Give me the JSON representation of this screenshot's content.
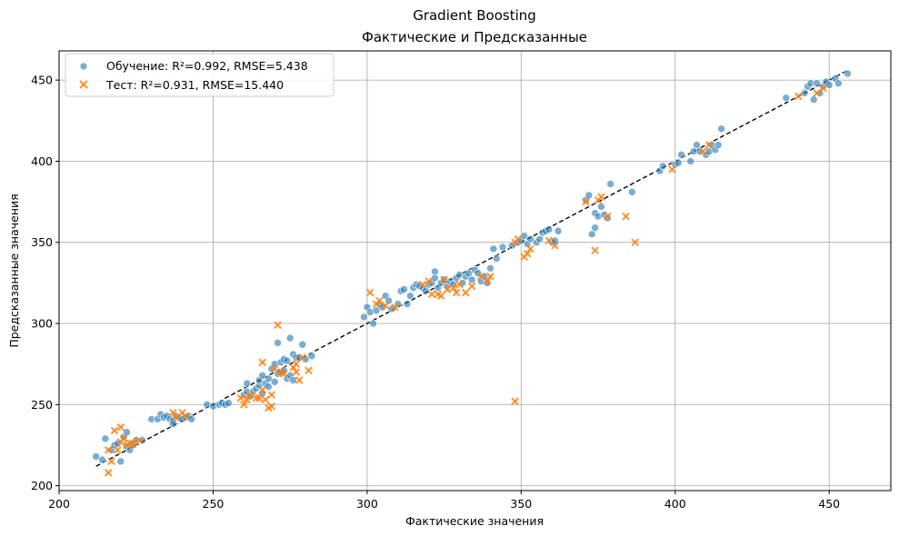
{
  "chart_data": {
    "type": "scatter",
    "title": "Gradient Boosting",
    "subtitle": "Фактические и Предсказанные",
    "xlabel": "Фактические значения",
    "ylabel": "Предсказанные значения",
    "xlim": [
      200,
      470
    ],
    "ylim": [
      197,
      468
    ],
    "xticks": [
      200,
      250,
      300,
      350,
      400,
      450
    ],
    "yticks": [
      200,
      250,
      300,
      350,
      400,
      450
    ],
    "grid": true,
    "legend": "top-left",
    "reference_line": {
      "style": "dashed",
      "color": "#000000",
      "x": [
        212,
        456
      ],
      "y": [
        212,
        456
      ]
    },
    "series": [
      {
        "name": "Обучение: R²=0.992, RMSE=5.438",
        "marker": "circle",
        "color": "#1f77b4",
        "points": [
          [
            212,
            218
          ],
          [
            214,
            216
          ],
          [
            215,
            229
          ],
          [
            217,
            222
          ],
          [
            218,
            225
          ],
          [
            219,
            226
          ],
          [
            220,
            215
          ],
          [
            221,
            230
          ],
          [
            222,
            233
          ],
          [
            222,
            224
          ],
          [
            223,
            222
          ],
          [
            224,
            225
          ],
          [
            225,
            228
          ],
          [
            227,
            228
          ],
          [
            230,
            241
          ],
          [
            232,
            241
          ],
          [
            233,
            244
          ],
          [
            234,
            242
          ],
          [
            235,
            243
          ],
          [
            236,
            241
          ],
          [
            237,
            240
          ],
          [
            237,
            238
          ],
          [
            238,
            243
          ],
          [
            239,
            242
          ],
          [
            240,
            241
          ],
          [
            241,
            242
          ],
          [
            242,
            243
          ],
          [
            243,
            241
          ],
          [
            248,
            250
          ],
          [
            250,
            249
          ],
          [
            252,
            250
          ],
          [
            253,
            251
          ],
          [
            254,
            250
          ],
          [
            255,
            251
          ],
          [
            260,
            256
          ],
          [
            261,
            258
          ],
          [
            261,
            263
          ],
          [
            262,
            255
          ],
          [
            263,
            258
          ],
          [
            264,
            260
          ],
          [
            265,
            262
          ],
          [
            265,
            265
          ],
          [
            266,
            268
          ],
          [
            266,
            257
          ],
          [
            267,
            263
          ],
          [
            268,
            261
          ],
          [
            268,
            266
          ],
          [
            269,
            272
          ],
          [
            270,
            264
          ],
          [
            270,
            275
          ],
          [
            271,
            288
          ],
          [
            271,
            269
          ],
          [
            272,
            270
          ],
          [
            272,
            276
          ],
          [
            273,
            271
          ],
          [
            273,
            278
          ],
          [
            274,
            277
          ],
          [
            274,
            266
          ],
          [
            275,
            291
          ],
          [
            275,
            268
          ],
          [
            276,
            281
          ],
          [
            276,
            265
          ],
          [
            277,
            279
          ],
          [
            278,
            279
          ],
          [
            279,
            287
          ],
          [
            280,
            278
          ],
          [
            282,
            280
          ],
          [
            299,
            304
          ],
          [
            300,
            310
          ],
          [
            301,
            307
          ],
          [
            302,
            300
          ],
          [
            303,
            308
          ],
          [
            304,
            312
          ],
          [
            305,
            310
          ],
          [
            306,
            317
          ],
          [
            307,
            314
          ],
          [
            308,
            309
          ],
          [
            310,
            312
          ],
          [
            311,
            320
          ],
          [
            312,
            321
          ],
          [
            313,
            312
          ],
          [
            314,
            317
          ],
          [
            315,
            322
          ],
          [
            316,
            324
          ],
          [
            317,
            323
          ],
          [
            318,
            322
          ],
          [
            319,
            320
          ],
          [
            320,
            324
          ],
          [
            321,
            325
          ],
          [
            322,
            328
          ],
          [
            322,
            332
          ],
          [
            323,
            322
          ],
          [
            324,
            325
          ],
          [
            325,
            327
          ],
          [
            326,
            323
          ],
          [
            327,
            326
          ],
          [
            328,
            324
          ],
          [
            329,
            328
          ],
          [
            330,
            330
          ],
          [
            331,
            325
          ],
          [
            332,
            329
          ],
          [
            333,
            331
          ],
          [
            334,
            327
          ],
          [
            335,
            333
          ],
          [
            336,
            331
          ],
          [
            337,
            326
          ],
          [
            338,
            329
          ],
          [
            339,
            325
          ],
          [
            340,
            334
          ],
          [
            341,
            346
          ],
          [
            342,
            340
          ],
          [
            344,
            347
          ],
          [
            347,
            348
          ],
          [
            349,
            350
          ],
          [
            350,
            351
          ],
          [
            351,
            354
          ],
          [
            352,
            349
          ],
          [
            353,
            352
          ],
          [
            355,
            350
          ],
          [
            356,
            352
          ],
          [
            357,
            356
          ],
          [
            358,
            357
          ],
          [
            359,
            358
          ],
          [
            360,
            350
          ],
          [
            361,
            351
          ],
          [
            362,
            357
          ],
          [
            371,
            376
          ],
          [
            372,
            379
          ],
          [
            373,
            355
          ],
          [
            374,
            368
          ],
          [
            374,
            359
          ],
          [
            375,
            366
          ],
          [
            376,
            372
          ],
          [
            377,
            367
          ],
          [
            378,
            365
          ],
          [
            379,
            386
          ],
          [
            386,
            381
          ],
          [
            395,
            394
          ],
          [
            396,
            397
          ],
          [
            400,
            398
          ],
          [
            401,
            399
          ],
          [
            402,
            404
          ],
          [
            405,
            400
          ],
          [
            406,
            406
          ],
          [
            407,
            410
          ],
          [
            408,
            406
          ],
          [
            410,
            404
          ],
          [
            411,
            406
          ],
          [
            412,
            410
          ],
          [
            413,
            407
          ],
          [
            414,
            410
          ],
          [
            415,
            420
          ],
          [
            436,
            439
          ],
          [
            442,
            442
          ],
          [
            443,
            446
          ],
          [
            444,
            448
          ],
          [
            445,
            438
          ],
          [
            446,
            448
          ],
          [
            447,
            442
          ],
          [
            448,
            446
          ],
          [
            449,
            449
          ],
          [
            450,
            447
          ],
          [
            452,
            451
          ],
          [
            453,
            448
          ],
          [
            456,
            454
          ]
        ]
      },
      {
        "name": "Тест: R²=0.931, RMSE=15.440",
        "marker": "x",
        "color": "#ff7f0e",
        "points": [
          [
            216,
            222
          ],
          [
            216,
            208
          ],
          [
            217,
            215
          ],
          [
            218,
            234
          ],
          [
            219,
            222
          ],
          [
            220,
            236
          ],
          [
            220,
            227
          ],
          [
            221,
            229
          ],
          [
            222,
            225
          ],
          [
            223,
            226
          ],
          [
            224,
            226
          ],
          [
            226,
            228
          ],
          [
            237,
            245
          ],
          [
            238,
            242
          ],
          [
            240,
            245
          ],
          [
            241,
            243
          ],
          [
            259,
            254
          ],
          [
            260,
            250
          ],
          [
            261,
            253
          ],
          [
            262,
            256
          ],
          [
            264,
            254
          ],
          [
            265,
            254
          ],
          [
            266,
            259
          ],
          [
            266,
            276
          ],
          [
            267,
            253
          ],
          [
            268,
            248
          ],
          [
            269,
            249
          ],
          [
            269,
            256
          ],
          [
            270,
            272
          ],
          [
            271,
            299
          ],
          [
            272,
            270
          ],
          [
            273,
            269
          ],
          [
            276,
            273
          ],
          [
            277,
            270
          ],
          [
            277,
            275
          ],
          [
            278,
            265
          ],
          [
            279,
            279
          ],
          [
            281,
            271
          ],
          [
            301,
            319
          ],
          [
            303,
            312
          ],
          [
            304,
            314
          ],
          [
            306,
            311
          ],
          [
            309,
            310
          ],
          [
            318,
            324
          ],
          [
            320,
            326
          ],
          [
            321,
            318
          ],
          [
            323,
            318
          ],
          [
            324,
            317
          ],
          [
            325,
            327
          ],
          [
            326,
            321
          ],
          [
            328,
            322
          ],
          [
            329,
            319
          ],
          [
            330,
            324
          ],
          [
            332,
            319
          ],
          [
            334,
            323
          ],
          [
            337,
            329
          ],
          [
            339,
            326
          ],
          [
            340,
            329
          ],
          [
            348,
            350
          ],
          [
            348,
            252
          ],
          [
            349,
            352
          ],
          [
            351,
            341
          ],
          [
            352,
            343
          ],
          [
            353,
            346
          ],
          [
            359,
            351
          ],
          [
            361,
            348
          ],
          [
            371,
            375
          ],
          [
            374,
            345
          ],
          [
            375,
            376
          ],
          [
            376,
            378
          ],
          [
            378,
            366
          ],
          [
            384,
            366
          ],
          [
            387,
            350
          ],
          [
            399,
            395
          ],
          [
            409,
            406
          ],
          [
            411,
            410
          ],
          [
            440,
            440
          ],
          [
            446,
            442
          ],
          [
            448,
            445
          ]
        ]
      }
    ]
  }
}
